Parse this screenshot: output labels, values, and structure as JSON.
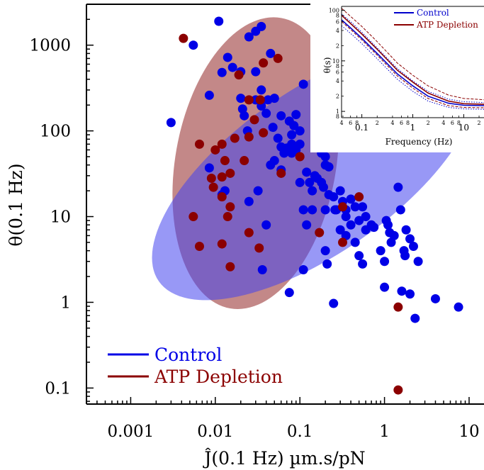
{
  "chart_data": [
    {
      "type": "scatter",
      "xlabel": "Ĵ(0.1 Hz) µm.s/pN",
      "ylabel": "θ(0.1 Hz)",
      "xscale": "log",
      "yscale": "log",
      "xlim": [
        0.0003,
        15
      ],
      "ylim": [
        0.065,
        3000
      ],
      "xticks": [
        0.001,
        0.01,
        0.1,
        1,
        10
      ],
      "xtick_labels": [
        "0.001",
        "0.01",
        "0.1",
        "1",
        "10"
      ],
      "yticks": [
        0.1,
        1,
        10,
        100,
        1000
      ],
      "ytick_labels": [
        "0.1",
        "1",
        "10",
        "100",
        "1000"
      ],
      "grid": false,
      "legend_position": "bottom-left",
      "series": [
        {
          "name": "Control",
          "color": "#0000e6",
          "points": [
            [
              0.003,
              125
            ],
            [
              0.0055,
              1000
            ],
            [
              0.0085,
              260
            ],
            [
              0.0085,
              37
            ],
            [
              0.011,
              1900
            ],
            [
              0.012,
              480
            ],
            [
              0.014,
              720
            ],
            [
              0.016,
              550
            ],
            [
              0.012,
              18
            ],
            [
              0.013,
              20
            ],
            [
              0.02,
              490
            ],
            [
              0.02,
              240
            ],
            [
              0.021,
              180
            ],
            [
              0.022,
              150
            ],
            [
              0.024,
              100
            ],
            [
              0.025,
              1250
            ],
            [
              0.03,
              1450
            ],
            [
              0.035,
              1650
            ],
            [
              0.03,
              490
            ],
            [
              0.03,
              230
            ],
            [
              0.035,
              300
            ],
            [
              0.035,
              195
            ],
            [
              0.04,
              160
            ],
            [
              0.045,
              800
            ],
            [
              0.042,
              230
            ],
            [
              0.05,
              240
            ],
            [
              0.048,
              110
            ],
            [
              0.055,
              82
            ],
            [
              0.06,
              150
            ],
            [
              0.06,
              65
            ],
            [
              0.065,
              55
            ],
            [
              0.07,
              63
            ],
            [
              0.08,
              90
            ],
            [
              0.08,
              70
            ],
            [
              0.085,
              115
            ],
            [
              0.09,
              155
            ],
            [
              0.075,
              130
            ],
            [
              0.11,
              350
            ],
            [
              0.1,
              100
            ],
            [
              0.1,
              70
            ],
            [
              0.045,
              40
            ],
            [
              0.05,
              45
            ],
            [
              0.06,
              35
            ],
            [
              0.08,
              55
            ],
            [
              0.09,
              60
            ],
            [
              0.1,
              25
            ],
            [
              0.12,
              33
            ],
            [
              0.13,
              25
            ],
            [
              0.14,
              20
            ],
            [
              0.15,
              30
            ],
            [
              0.16,
              28
            ],
            [
              0.18,
              55
            ],
            [
              0.2,
              40
            ],
            [
              0.2,
              50
            ],
            [
              0.21,
              75
            ],
            [
              0.22,
              38
            ],
            [
              0.18,
              25
            ],
            [
              0.19,
              22
            ],
            [
              0.22,
              18
            ],
            [
              0.25,
              17
            ],
            [
              0.26,
              12
            ],
            [
              0.3,
              20
            ],
            [
              0.32,
              15
            ],
            [
              0.35,
              12
            ],
            [
              0.4,
              16
            ],
            [
              0.45,
              13
            ],
            [
              0.5,
              9
            ],
            [
              0.55,
              13
            ],
            [
              0.6,
              10
            ],
            [
              0.3,
              7
            ],
            [
              0.35,
              6
            ],
            [
              0.45,
              5
            ],
            [
              0.5,
              3.5
            ],
            [
              0.55,
              2.8
            ],
            [
              0.6,
              7
            ],
            [
              0.7,
              8
            ],
            [
              0.75,
              7.5
            ],
            [
              0.9,
              4
            ],
            [
              1,
              3
            ],
            [
              1.05,
              9
            ],
            [
              1.1,
              8
            ],
            [
              1.15,
              6.5
            ],
            [
              1.2,
              5
            ],
            [
              1.3,
              6
            ],
            [
              1.45,
              22
            ],
            [
              1.55,
              12
            ],
            [
              1.7,
              4
            ],
            [
              1.75,
              3.5
            ],
            [
              1.8,
              7
            ],
            [
              2.0,
              5.5
            ],
            [
              2.2,
              4.5
            ],
            [
              2.5,
              3
            ],
            [
              1.0,
              1.5
            ],
            [
              1.6,
              1.35
            ],
            [
              2.0,
              1.25
            ],
            [
              2.3,
              0.65
            ],
            [
              4.0,
              1.1
            ],
            [
              7.5,
              0.88
            ],
            [
              0.2,
              4
            ],
            [
              0.21,
              2.8
            ],
            [
              0.25,
              0.97
            ],
            [
              0.11,
              2.4
            ],
            [
              0.075,
              1.3
            ],
            [
              0.036,
              2.4
            ],
            [
              0.04,
              8
            ],
            [
              0.032,
              20
            ],
            [
              0.025,
              15
            ],
            [
              0.12,
              8
            ],
            [
              0.14,
              12
            ],
            [
              0.11,
              12
            ],
            [
              0.27,
              12
            ],
            [
              0.35,
              10
            ],
            [
              0.4,
              8
            ],
            [
              0.2,
              12
            ]
          ]
        },
        {
          "name": "ATP Depletion",
          "color": "#8b0000",
          "points": [
            [
              0.0042,
              1200
            ],
            [
              0.019,
              450
            ],
            [
              0.037,
              620
            ],
            [
              0.055,
              700
            ],
            [
              0.025,
              230
            ],
            [
              0.034,
              230
            ],
            [
              0.029,
              135
            ],
            [
              0.025,
              85
            ],
            [
              0.037,
              95
            ],
            [
              0.0065,
              70
            ],
            [
              0.01,
              60
            ],
            [
              0.012,
              70
            ],
            [
              0.017,
              82
            ],
            [
              0.013,
              45
            ],
            [
              0.012,
              29
            ],
            [
              0.009,
              28
            ],
            [
              0.0095,
              22
            ],
            [
              0.012,
              17
            ],
            [
              0.015,
              13
            ],
            [
              0.014,
              10
            ],
            [
              0.0055,
              10
            ],
            [
              0.0065,
              4.5
            ],
            [
              0.012,
              4.8
            ],
            [
              0.015,
              2.6
            ],
            [
              0.025,
              6.5
            ],
            [
              0.033,
              4.3
            ],
            [
              0.06,
              32
            ],
            [
              0.1,
              50
            ],
            [
              0.17,
              6.5
            ],
            [
              0.32,
              13
            ],
            [
              0.32,
              5
            ],
            [
              0.5,
              17
            ],
            [
              1.45,
              0.88
            ],
            [
              1.45,
              0.095
            ],
            [
              0.022,
              45
            ],
            [
              0.015,
              32
            ]
          ]
        }
      ],
      "ellipses": [
        {
          "series": "ATP Depletion",
          "color": "#aa5555",
          "center": [
            0.03,
            42
          ],
          "semi_axes_decades": [
            0.95,
            1.72
          ],
          "angle_deg": -10,
          "opacity": 0.7
        },
        {
          "series": "Control",
          "color": "#4444ee",
          "center": [
            0.15,
            33
          ],
          "semi_axes_decades": [
            2.25,
            0.95
          ],
          "angle_deg": 35,
          "opacity": 0.55
        }
      ]
    },
    {
      "type": "line",
      "inset": true,
      "xlabel": "Frequency (Hz)",
      "ylabel": "θ(s)",
      "xscale": "log",
      "yscale": "log",
      "xlim": [
        0.04,
        25
      ],
      "ylim": [
        0.75,
        120
      ],
      "xtick_labels": [
        "0.1",
        "1",
        "10"
      ],
      "ytick_labels": [
        "1",
        "10",
        "100"
      ],
      "minor_xtick_labels": [
        "4",
        "6",
        "8",
        "2",
        "4",
        "6",
        "8",
        "2",
        "4",
        "6",
        "8",
        "2"
      ],
      "minor_ytick_labels": [
        "8",
        "6",
        "4",
        "2",
        "8",
        "6",
        "4",
        "2",
        "8",
        "6",
        "4",
        "2"
      ],
      "legend_position": "top-right",
      "series": [
        {
          "name": "Control",
          "color": "#0000cc",
          "x": [
            0.04,
            0.06,
            0.1,
            0.2,
            0.5,
            1,
            2,
            5,
            10,
            25
          ],
          "y": [
            65,
            45,
            28,
            14,
            5.5,
            3.2,
            2.0,
            1.45,
            1.32,
            1.3
          ]
        },
        {
          "name": "ATP Depletion",
          "color": "#8b0000",
          "x": [
            0.04,
            0.06,
            0.1,
            0.2,
            0.5,
            1,
            2,
            5,
            10,
            25
          ],
          "y": [
            80,
            55,
            34,
            17,
            6.5,
            3.8,
            2.3,
            1.6,
            1.42,
            1.38
          ]
        }
      ],
      "bands": [
        {
          "series": "Control",
          "style": "dotted",
          "lower": [
            50,
            35,
            22,
            11,
            4.3,
            2.5,
            1.6,
            1.2,
            1.12,
            1.1
          ],
          "upper": [
            85,
            60,
            37,
            18,
            7,
            4.0,
            2.5,
            1.75,
            1.55,
            1.5
          ]
        },
        {
          "series": "ATP Depletion",
          "style": "dashed",
          "lower": [
            60,
            42,
            26,
            13,
            5,
            2.9,
            1.8,
            1.3,
            1.2,
            1.18
          ],
          "upper": [
            110,
            76,
            48,
            24,
            9,
            5.2,
            3.2,
            2.1,
            1.8,
            1.7
          ]
        }
      ]
    }
  ]
}
